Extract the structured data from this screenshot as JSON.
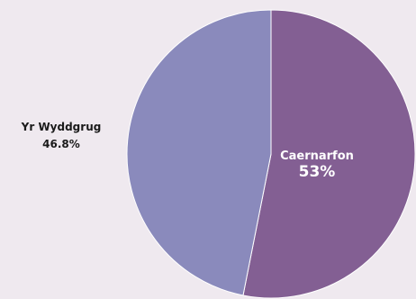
{
  "chart_data": {
    "type": "pie",
    "slices": [
      {
        "label": "Caernarfon",
        "value": 53,
        "display": "53%",
        "color": "#835f93"
      },
      {
        "label": "Yr Wyddgrug",
        "value": 46.8,
        "display": "46.8%",
        "color": "#8a8abc"
      }
    ],
    "slice_border_color": "#ffffff"
  }
}
